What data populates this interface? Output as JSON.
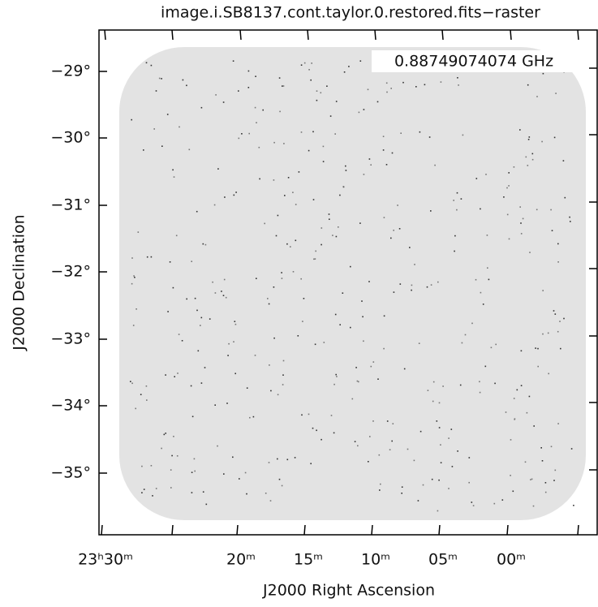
{
  "title": "image.i.SB8137.cont.taylor.0.restored.fits−raster",
  "annotation": "0.88749074074 GHz",
  "x_axis": {
    "label": "J2000 Right Ascension",
    "tick_labels": [
      "23ʰ30ᵐ",
      "20ᵐ",
      "15ᵐ",
      "10ᵐ",
      "05ᵐ",
      "00ᵐ"
    ]
  },
  "y_axis": {
    "label": "J2000 Declination",
    "tick_labels": [
      "−29°",
      "−30°",
      "−31°",
      "−32°",
      "−33°",
      "−34°",
      "−35°"
    ]
  }
}
